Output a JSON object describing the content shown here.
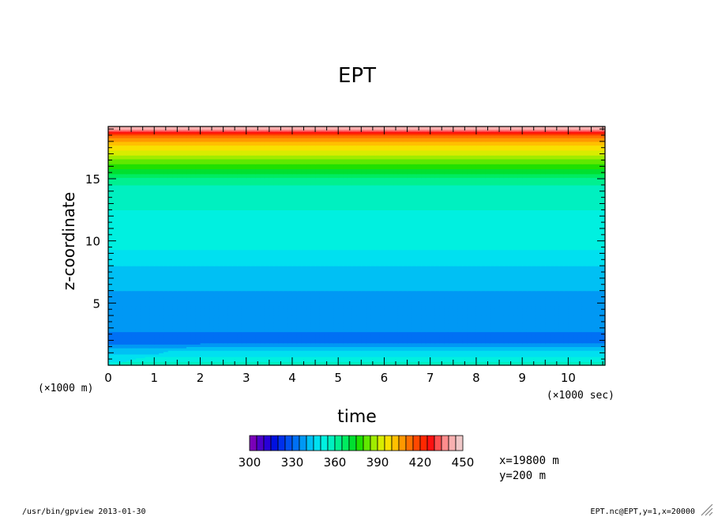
{
  "chart_data": {
    "type": "heatmap",
    "title": "EPT",
    "xlabel": "time",
    "ylabel": "z-coordinate",
    "x_scale_note": "(×1000 sec)",
    "y_scale_note": "(×1000 m)",
    "xlim": [
      0,
      10.8
    ],
    "ylim": [
      0,
      19.2
    ],
    "x_ticks": [
      0,
      1,
      2,
      3,
      4,
      5,
      6,
      7,
      8,
      9,
      10
    ],
    "y_ticks": [
      5,
      10,
      15
    ],
    "colorbar": {
      "min": 300,
      "max": 450,
      "step": 5,
      "tick_labels": [
        "300",
        "330",
        "360",
        "390",
        "420",
        "450"
      ],
      "colors": [
        "#7a00b8",
        "#4c00c8",
        "#2800d8",
        "#0010e0",
        "#0030ec",
        "#0050f0",
        "#0070f4",
        "#0098f4",
        "#00c0f4",
        "#00e0f0",
        "#00f0e0",
        "#00f0c0",
        "#00f090",
        "#00ec60",
        "#00e030",
        "#20e000",
        "#60e800",
        "#a0ec00",
        "#d8ec00",
        "#f8e000",
        "#ffc000",
        "#ff9800",
        "#ff7000",
        "#ff4800",
        "#ff2800",
        "#ff1010",
        "#ff5050",
        "#ff8c8c",
        "#f8b0b0",
        "#f0c8c8"
      ]
    },
    "z_levels": [
      0,
      0.25,
      0.5,
      0.75,
      1,
      1.2,
      1.5,
      1.8,
      2,
      2.2,
      2.5,
      3,
      4,
      5,
      6,
      7,
      8,
      9,
      10,
      11,
      12,
      13,
      14,
      14.5,
      15,
      15.3,
      15.6,
      15.9,
      16.2,
      16.5,
      16.8,
      17.1,
      17.4,
      17.7,
      18,
      18.3,
      18.6,
      18.9,
      19.2
    ],
    "ept_profile": [
      352,
      350,
      348,
      346,
      344,
      342,
      338,
      333,
      331,
      332,
      334,
      336,
      337,
      338,
      340,
      342,
      345,
      349,
      352,
      353,
      354,
      356,
      357,
      360,
      364,
      368,
      372,
      376,
      380,
      384,
      388,
      392,
      396,
      400,
      405,
      410,
      420,
      435,
      446
    ]
  },
  "info": {
    "x_position": "x=19800 m",
    "y_position": "y=200 m"
  },
  "footer": {
    "left": "/usr/bin/gpview  2013-01-30",
    "right": "EPT.nc@EPT,y=1,x=20000"
  }
}
